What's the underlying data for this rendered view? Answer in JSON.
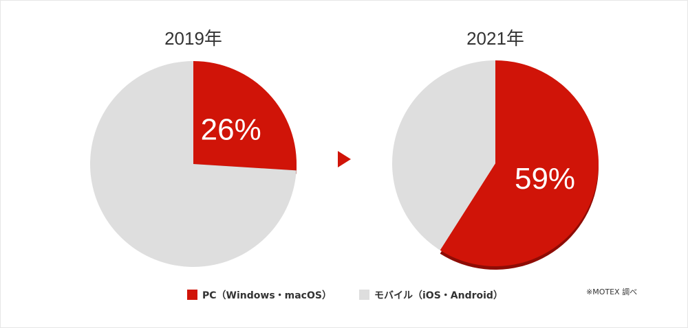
{
  "chart_data": [
    {
      "type": "pie",
      "title": "2019年",
      "values": [
        26,
        74
      ],
      "value_labels": [
        "26%",
        null
      ]
    },
    {
      "type": "pie",
      "title": "2021年",
      "values": [
        59,
        41
      ],
      "value_labels": [
        "59%",
        null
      ]
    }
  ],
  "legend": {
    "labels": [
      "PC（Windows・macOS）",
      "モバイル（iOS・Android）"
    ],
    "colors": [
      "#d01408",
      "#dedede"
    ]
  },
  "source": "※MOTEX 調べ"
}
